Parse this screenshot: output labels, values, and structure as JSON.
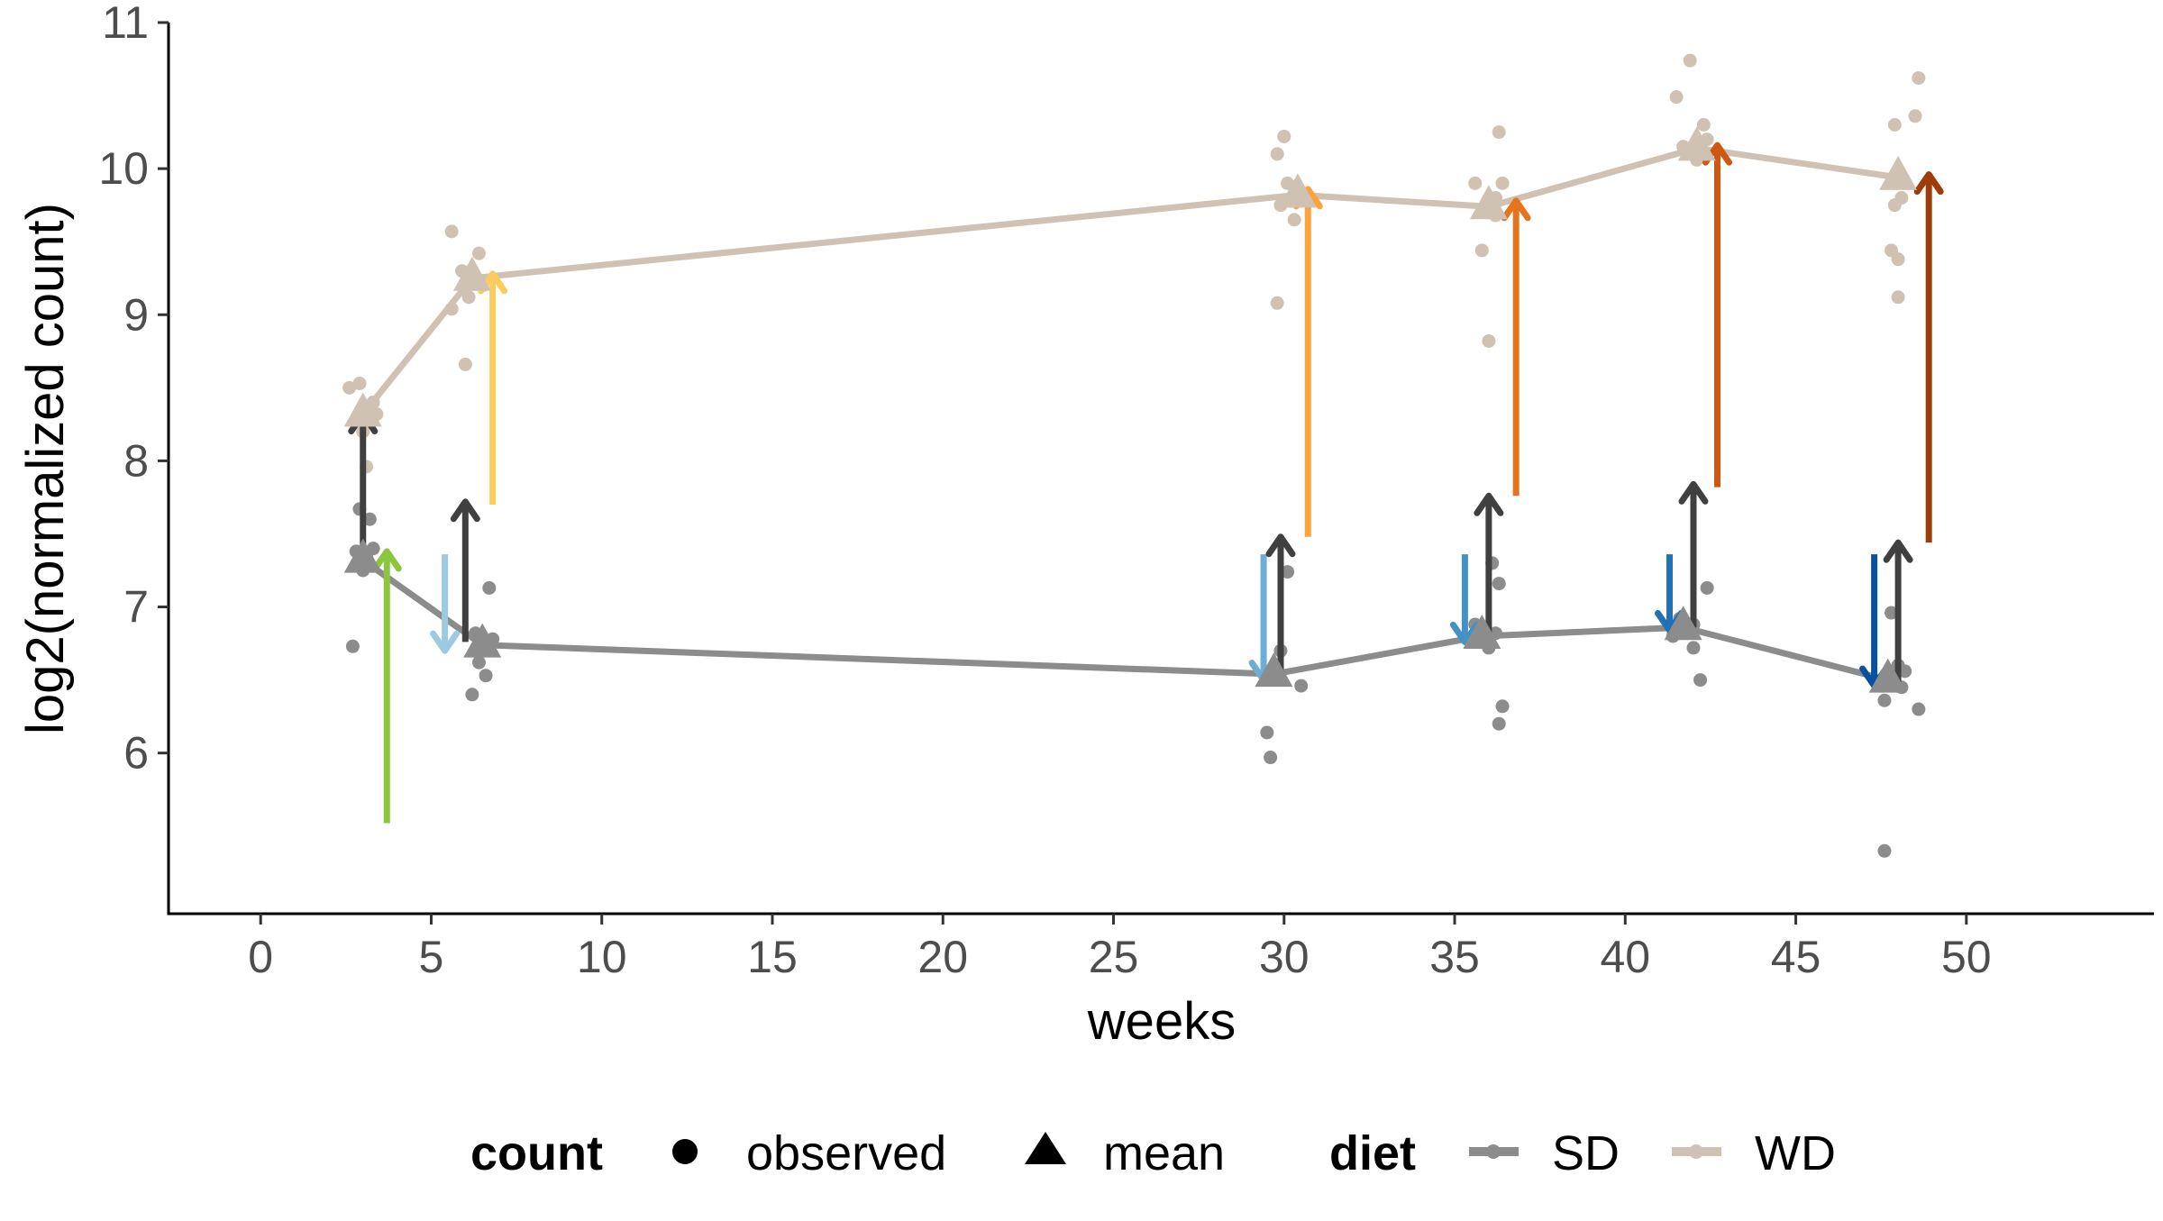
{
  "chart_data": {
    "type": "line",
    "xlabel": "weeks",
    "ylabel": "log2(normalized count)",
    "xlim": [
      -2.7,
      55.5
    ],
    "ylim": [
      4.9,
      11
    ],
    "x_ticks": [
      0,
      5,
      10,
      15,
      20,
      25,
      30,
      35,
      40,
      45,
      50
    ],
    "y_ticks": [
      6,
      7,
      8,
      9,
      10,
      11
    ],
    "grid": false,
    "legend_position": "bottom",
    "legend": {
      "count_title": "count",
      "count_items": [
        {
          "label": "observed",
          "shape": "circle"
        },
        {
          "label": "mean",
          "shape": "triangle"
        }
      ],
      "diet_title": "diet",
      "diet_items": [
        {
          "label": "SD",
          "color": "#8c8c8c"
        },
        {
          "label": "WD",
          "color": "#cfc2b2"
        }
      ]
    },
    "series": [
      {
        "name": "SD",
        "color": "#8c8c8c",
        "means": [
          {
            "x": 3,
            "y": 7.32
          },
          {
            "x": 6.5,
            "y": 6.74
          },
          {
            "x": 29.7,
            "y": 6.54
          },
          {
            "x": 35.8,
            "y": 6.8
          },
          {
            "x": 41.7,
            "y": 6.86
          },
          {
            "x": 47.7,
            "y": 6.5
          }
        ],
        "observed": [
          {
            "x": 2.7,
            "y": 6.73
          },
          {
            "x": 2.8,
            "y": 7.38
          },
          {
            "x": 2.9,
            "y": 7.67
          },
          {
            "x": 3.0,
            "y": 7.25
          },
          {
            "x": 3.2,
            "y": 7.6
          },
          {
            "x": 3.3,
            "y": 7.4
          },
          {
            "x": 3.1,
            "y": 7.35
          },
          {
            "x": 6.2,
            "y": 6.4
          },
          {
            "x": 6.3,
            "y": 6.82
          },
          {
            "x": 6.4,
            "y": 6.62
          },
          {
            "x": 6.5,
            "y": 6.7
          },
          {
            "x": 6.6,
            "y": 6.53
          },
          {
            "x": 6.7,
            "y": 7.13
          },
          {
            "x": 6.8,
            "y": 6.78
          },
          {
            "x": 29.5,
            "y": 6.14
          },
          {
            "x": 29.6,
            "y": 5.97
          },
          {
            "x": 29.9,
            "y": 6.7
          },
          {
            "x": 30.1,
            "y": 7.24
          },
          {
            "x": 30.5,
            "y": 6.46
          },
          {
            "x": 29.8,
            "y": 6.55
          },
          {
            "x": 35.6,
            "y": 6.88
          },
          {
            "x": 36.0,
            "y": 6.72
          },
          {
            "x": 36.2,
            "y": 6.82
          },
          {
            "x": 36.3,
            "y": 6.2
          },
          {
            "x": 36.4,
            "y": 6.32
          },
          {
            "x": 36.1,
            "y": 7.3
          },
          {
            "x": 36.3,
            "y": 7.16
          },
          {
            "x": 41.4,
            "y": 6.8
          },
          {
            "x": 41.6,
            "y": 6.92
          },
          {
            "x": 41.8,
            "y": 6.85
          },
          {
            "x": 42.0,
            "y": 6.88
          },
          {
            "x": 42.2,
            "y": 6.5
          },
          {
            "x": 42.4,
            "y": 7.13
          },
          {
            "x": 42.0,
            "y": 6.72
          },
          {
            "x": 47.6,
            "y": 5.33
          },
          {
            "x": 47.6,
            "y": 6.36
          },
          {
            "x": 47.8,
            "y": 6.96
          },
          {
            "x": 48.0,
            "y": 6.6
          },
          {
            "x": 48.2,
            "y": 6.56
          },
          {
            "x": 48.6,
            "y": 6.3
          },
          {
            "x": 48.1,
            "y": 6.45
          }
        ]
      },
      {
        "name": "WD",
        "color": "#cfc2b2",
        "means": [
          {
            "x": 3,
            "y": 8.32
          },
          {
            "x": 6.2,
            "y": 9.25
          },
          {
            "x": 30.4,
            "y": 9.82
          },
          {
            "x": 36.0,
            "y": 9.74
          },
          {
            "x": 42.1,
            "y": 10.14
          },
          {
            "x": 48.0,
            "y": 9.94
          }
        ],
        "observed": [
          {
            "x": 2.6,
            "y": 8.5
          },
          {
            "x": 2.9,
            "y": 8.53
          },
          {
            "x": 3.0,
            "y": 8.2
          },
          {
            "x": 3.1,
            "y": 7.96
          },
          {
            "x": 3.3,
            "y": 8.4
          },
          {
            "x": 3.4,
            "y": 8.32
          },
          {
            "x": 3.2,
            "y": 8.28
          },
          {
            "x": 5.6,
            "y": 9.57
          },
          {
            "x": 5.6,
            "y": 9.04
          },
          {
            "x": 5.9,
            "y": 9.3
          },
          {
            "x": 6.0,
            "y": 8.66
          },
          {
            "x": 6.4,
            "y": 9.42
          },
          {
            "x": 6.5,
            "y": 9.2
          },
          {
            "x": 6.1,
            "y": 9.12
          },
          {
            "x": 29.8,
            "y": 10.1
          },
          {
            "x": 29.8,
            "y": 9.08
          },
          {
            "x": 29.9,
            "y": 9.75
          },
          {
            "x": 30.0,
            "y": 10.22
          },
          {
            "x": 30.2,
            "y": 9.78
          },
          {
            "x": 30.3,
            "y": 9.65
          },
          {
            "x": 30.1,
            "y": 9.9
          },
          {
            "x": 35.6,
            "y": 9.9
          },
          {
            "x": 35.8,
            "y": 9.44
          },
          {
            "x": 36.0,
            "y": 8.82
          },
          {
            "x": 36.2,
            "y": 9.8
          },
          {
            "x": 36.3,
            "y": 10.25
          },
          {
            "x": 36.4,
            "y": 9.9
          },
          {
            "x": 36.2,
            "y": 9.68
          },
          {
            "x": 41.5,
            "y": 10.49
          },
          {
            "x": 41.7,
            "y": 10.15
          },
          {
            "x": 41.9,
            "y": 10.74
          },
          {
            "x": 42.3,
            "y": 10.3
          },
          {
            "x": 42.1,
            "y": 10.06
          },
          {
            "x": 42.4,
            "y": 10.2
          },
          {
            "x": 47.8,
            "y": 9.44
          },
          {
            "x": 47.9,
            "y": 10.3
          },
          {
            "x": 48.0,
            "y": 9.12
          },
          {
            "x": 48.0,
            "y": 9.38
          },
          {
            "x": 48.1,
            "y": 9.8
          },
          {
            "x": 48.5,
            "y": 10.36
          },
          {
            "x": 48.6,
            "y": 10.62
          },
          {
            "x": 47.9,
            "y": 9.75
          }
        ]
      }
    ],
    "arrows": [
      {
        "x": 3.0,
        "y_start": 7.35,
        "y_end": 8.32,
        "color": "#404040"
      },
      {
        "x": 3.7,
        "y_start": 5.52,
        "y_end": 7.38,
        "color": "#8cc63f"
      },
      {
        "x": 5.4,
        "y_start": 7.36,
        "y_end": 6.7,
        "color": "#9ecae1"
      },
      {
        "x": 6.0,
        "y_start": 6.76,
        "y_end": 7.72,
        "color": "#404040"
      },
      {
        "x": 6.8,
        "y_start": 7.7,
        "y_end": 9.28,
        "color": "#fdcb5c"
      },
      {
        "x": 29.4,
        "y_start": 7.36,
        "y_end": 6.5,
        "color": "#6baed6"
      },
      {
        "x": 29.9,
        "y_start": 6.52,
        "y_end": 7.48,
        "color": "#404040"
      },
      {
        "x": 30.7,
        "y_start": 7.48,
        "y_end": 9.86,
        "color": "#fca33c"
      },
      {
        "x": 35.3,
        "y_start": 7.36,
        "y_end": 6.76,
        "color": "#4292c6"
      },
      {
        "x": 36.0,
        "y_start": 6.78,
        "y_end": 7.76,
        "color": "#404040"
      },
      {
        "x": 36.8,
        "y_start": 7.76,
        "y_end": 9.78,
        "color": "#e6731e"
      },
      {
        "x": 41.3,
        "y_start": 7.36,
        "y_end": 6.84,
        "color": "#2171b5"
      },
      {
        "x": 42.0,
        "y_start": 6.86,
        "y_end": 7.84,
        "color": "#404040"
      },
      {
        "x": 42.7,
        "y_start": 7.82,
        "y_end": 10.16,
        "color": "#cf5714"
      },
      {
        "x": 47.3,
        "y_start": 7.36,
        "y_end": 6.46,
        "color": "#08519c"
      },
      {
        "x": 48.0,
        "y_start": 6.48,
        "y_end": 7.44,
        "color": "#404040"
      },
      {
        "x": 48.9,
        "y_start": 7.44,
        "y_end": 9.96,
        "color": "#9c3d0a"
      }
    ]
  }
}
